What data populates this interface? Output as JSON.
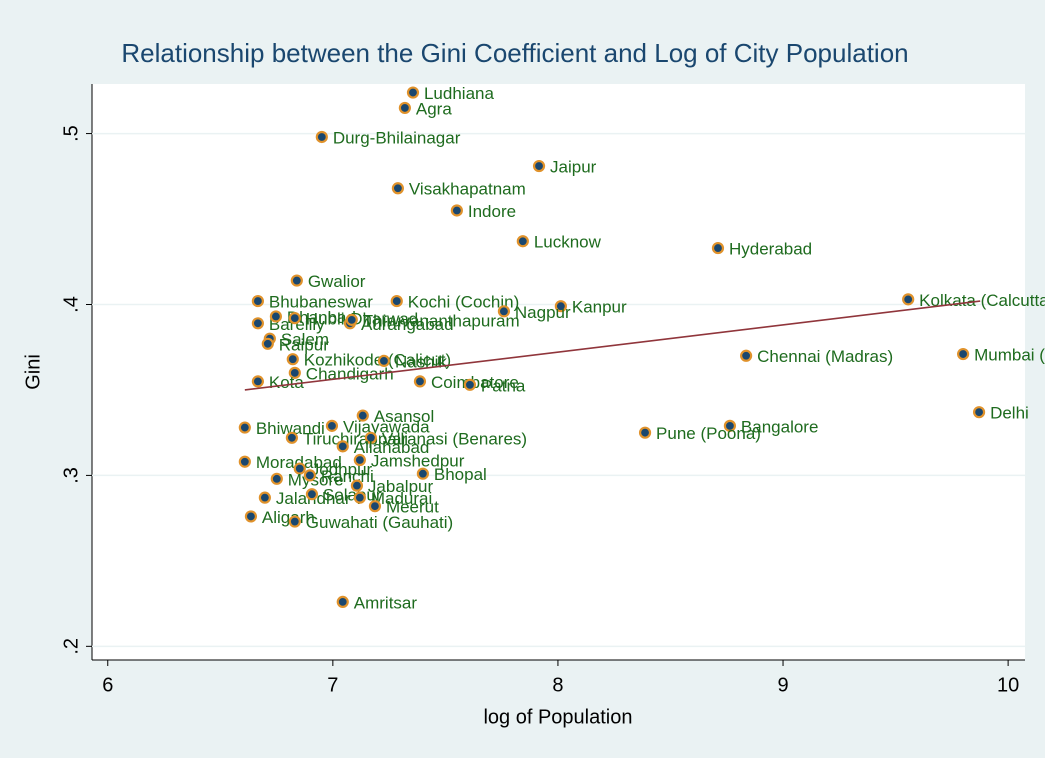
{
  "chart_data": {
    "type": "scatter",
    "title": "Relationship between the Gini Coefficient and Log of City Population",
    "xlabel": "log of Population",
    "ylabel": "Gini",
    "xlim": [
      5.93,
      10.075
    ],
    "ylim": [
      0.192,
      0.529
    ],
    "xticks": [
      6,
      7,
      8,
      9,
      10
    ],
    "yticks": [
      {
        "value": 0.2,
        "label": ".2"
      },
      {
        "value": 0.3,
        "label": ".3"
      },
      {
        "value": 0.4,
        "label": ".4"
      },
      {
        "value": 0.5,
        "label": ".5"
      }
    ],
    "grid": true,
    "series": [
      {
        "color": "#1a476f",
        "edgecolor": "#e0922b",
        "labelcolor": "#1e6b1e",
        "labels": [
          "Ludhiana",
          "Agra",
          "Durg-Bhilainagar",
          "Jaipur",
          "Visakhapatnam",
          "Indore",
          "Lucknow",
          "Hyderabad",
          "Gwalior",
          "Bhubaneswar",
          "Kochi (Cochin)",
          "Kanpur",
          "Nagpur",
          "Kolkata (Calcutta)",
          "Bareilly",
          "Dhanbad",
          "Hubli-Dharwad",
          "Aurangabad",
          "Thiruvananthapuram",
          "Salem",
          "Raipur",
          "Kozhikode (Calicut)",
          "Nashik",
          "Chandigarh",
          "Kota",
          "Coimbatore",
          "Patna",
          "Chennai (Madras)",
          "Mumbai (Bombay)",
          "Delhi",
          "Asansol",
          "Vijayawada",
          "Bhiwandi",
          "Bangalore",
          "Pune (Poona)",
          "Tiruchirappalli",
          "Varanasi (Benares)",
          "Allahabad",
          "Jamshedpur",
          "Moradabad",
          "Bhopal",
          "Jodhpur",
          "Mysore",
          "Ranchi",
          "Jabalpur",
          "Jalandhar",
          "Solapur",
          "Madurai",
          "Meerut",
          "Aligarh",
          "Guwahati (Gauhati)",
          "Amritsar"
        ],
        "x": [
          7.356,
          7.32,
          6.951,
          7.916,
          7.289,
          7.551,
          7.844,
          8.711,
          6.84,
          6.667,
          7.284,
          8.013,
          7.76,
          9.556,
          6.667,
          6.747,
          6.831,
          7.076,
          7.084,
          6.72,
          6.711,
          6.822,
          7.227,
          6.831,
          6.667,
          7.387,
          7.609,
          8.836,
          9.8,
          9.871,
          7.133,
          6.996,
          6.609,
          8.764,
          8.387,
          6.818,
          7.169,
          7.044,
          7.12,
          6.609,
          7.4,
          6.853,
          6.751,
          6.898,
          7.107,
          6.698,
          6.907,
          7.12,
          7.187,
          6.636,
          6.831,
          7.044
        ],
        "values": [
          0.524,
          0.515,
          0.498,
          0.481,
          0.468,
          0.455,
          0.437,
          0.433,
          0.414,
          0.402,
          0.402,
          0.399,
          0.396,
          0.403,
          0.389,
          0.393,
          0.392,
          0.389,
          0.391,
          0.38,
          0.377,
          0.368,
          0.367,
          0.36,
          0.355,
          0.355,
          0.353,
          0.37,
          0.371,
          0.337,
          0.335,
          0.329,
          0.328,
          0.329,
          0.325,
          0.322,
          0.322,
          0.317,
          0.309,
          0.308,
          0.301,
          0.304,
          0.298,
          0.3,
          0.294,
          0.287,
          0.289,
          0.287,
          0.282,
          0.276,
          0.273,
          0.226
        ]
      }
    ],
    "fit": {
      "color": "#90353b",
      "x": [
        6.609,
        9.876
      ],
      "values": [
        0.35,
        0.402
      ]
    }
  }
}
